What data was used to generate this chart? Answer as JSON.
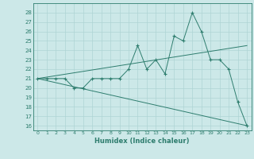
{
  "xlabel": "Humidex (Indice chaleur)",
  "ylabel": "",
  "bg_color": "#cce8e8",
  "line_color": "#2e7d6e",
  "xlim": [
    -0.5,
    23.5
  ],
  "ylim": [
    15.5,
    29
  ],
  "yticks": [
    16,
    17,
    18,
    19,
    20,
    21,
    22,
    23,
    24,
    25,
    26,
    27,
    28
  ],
  "xticks": [
    0,
    1,
    2,
    3,
    4,
    5,
    6,
    7,
    8,
    9,
    10,
    11,
    12,
    13,
    14,
    15,
    16,
    17,
    18,
    19,
    20,
    21,
    22,
    23
  ],
  "main_x": [
    0,
    1,
    2,
    3,
    4,
    5,
    6,
    7,
    8,
    9,
    10,
    11,
    12,
    13,
    14,
    15,
    16,
    17,
    18,
    19,
    20,
    21,
    22,
    23
  ],
  "main_y": [
    21,
    21,
    21,
    21,
    20,
    20,
    21,
    21,
    21,
    21,
    22,
    24.5,
    22,
    23,
    21.5,
    25.5,
    25,
    28,
    26,
    23,
    23,
    22,
    18.5,
    16
  ],
  "trend1_x": [
    0,
    23
  ],
  "trend1_y": [
    21,
    24.5
  ],
  "trend2_x": [
    0,
    23
  ],
  "trend2_y": [
    21,
    16
  ]
}
